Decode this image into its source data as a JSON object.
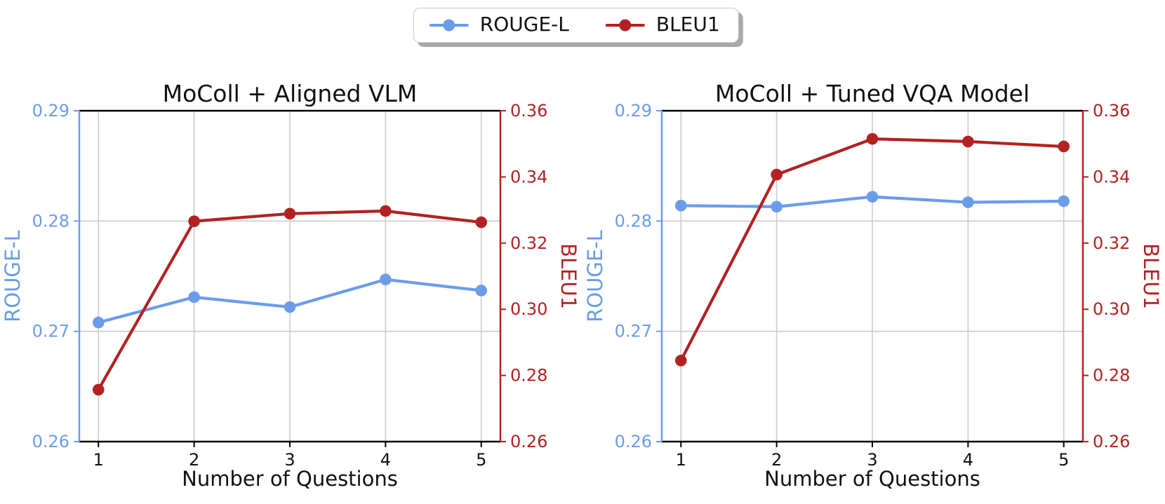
{
  "page": {
    "background": "#ffffff"
  },
  "legend": {
    "items": [
      {
        "label": "ROUGE-L",
        "color": "#6A9CEA"
      },
      {
        "label": "BLEU1",
        "color": "#B22222"
      }
    ]
  },
  "colors": {
    "rouge_blue": "#6A9CEA",
    "bleu_red": "#B22222",
    "grid": "#cbcbcb",
    "spine_black": "#000000",
    "text": "#111111"
  },
  "chart_data": [
    {
      "type": "line",
      "title": "MoColl + Aligned VLM",
      "xlabel": "Number of Questions",
      "x": [
        1,
        2,
        3,
        4,
        5
      ],
      "xlim": [
        0.8,
        5.2
      ],
      "grid": true,
      "legend_position": "figure-top-center",
      "left_axis": {
        "label": "ROUGE-L",
        "color": "#6A9CEA",
        "range": [
          0.26,
          0.29
        ],
        "ticks": [
          0.26,
          0.27,
          0.28,
          0.29
        ]
      },
      "right_axis": {
        "label": "BLEU1",
        "color": "#B22222",
        "range": [
          0.26,
          0.36
        ],
        "ticks": [
          0.26,
          0.28,
          0.3,
          0.32,
          0.34,
          0.36
        ]
      },
      "series": [
        {
          "name": "ROUGE-L",
          "axis": "left",
          "color": "#6A9CEA",
          "values": [
            0.2708,
            0.2731,
            0.2722,
            0.2747,
            0.2737
          ]
        },
        {
          "name": "BLEU1",
          "axis": "right",
          "color": "#B22222",
          "values": [
            0.2757,
            0.3266,
            0.3289,
            0.3297,
            0.3263
          ]
        }
      ]
    },
    {
      "type": "line",
      "title": "MoColl + Tuned VQA Model",
      "xlabel": "Number of Questions",
      "x": [
        1,
        2,
        3,
        4,
        5
      ],
      "xlim": [
        0.8,
        5.2
      ],
      "grid": true,
      "legend_position": "figure-top-center",
      "left_axis": {
        "label": "ROUGE-L",
        "color": "#6A9CEA",
        "range": [
          0.26,
          0.29
        ],
        "ticks": [
          0.26,
          0.27,
          0.28,
          0.29
        ]
      },
      "right_axis": {
        "label": "BLEU1",
        "color": "#B22222",
        "range": [
          0.26,
          0.36
        ],
        "ticks": [
          0.26,
          0.28,
          0.3,
          0.32,
          0.34,
          0.36
        ]
      },
      "series": [
        {
          "name": "ROUGE-L",
          "axis": "left",
          "color": "#6A9CEA",
          "values": [
            0.2814,
            0.2813,
            0.2822,
            0.2817,
            0.2818
          ]
        },
        {
          "name": "BLEU1",
          "axis": "right",
          "color": "#B22222",
          "values": [
            0.2845,
            0.3407,
            0.3515,
            0.3507,
            0.3492
          ]
        }
      ]
    }
  ]
}
